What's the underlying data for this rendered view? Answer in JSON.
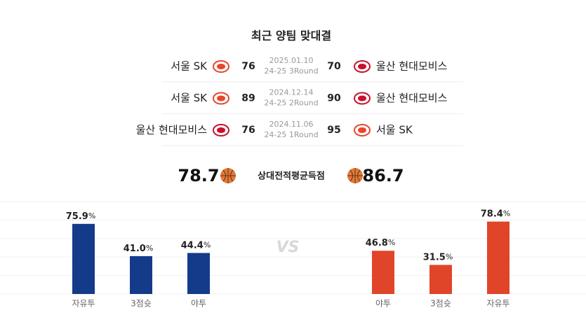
{
  "title": "최근 양팀 맞대결",
  "games": [
    {
      "date": "2025.01.10",
      "round": "24-25 3Round",
      "home": {
        "name": "서울 SK",
        "score": 76,
        "logo_color": "#e8452c"
      },
      "away": {
        "name": "울산 현대모비스",
        "score": 70,
        "logo_color": "#c8102e"
      }
    },
    {
      "date": "2024.12.14",
      "round": "24-25 2Round",
      "home": {
        "name": "서울 SK",
        "score": 89,
        "logo_color": "#e8452c"
      },
      "away": {
        "name": "울산 현대모비스",
        "score": 90,
        "logo_color": "#c8102e"
      }
    },
    {
      "date": "2024.11.06",
      "round": "24-25 1Round",
      "home": {
        "name": "울산 현대모비스",
        "score": 76,
        "logo_color": "#c8102e"
      },
      "away": {
        "name": "서울 SK",
        "score": 95,
        "logo_color": "#e8452c"
      }
    }
  ],
  "averages": {
    "label": "상대전적평균득점",
    "left": "78.7",
    "right": "86.7"
  },
  "vs": "VS",
  "chart_data": [
    {
      "type": "bar",
      "categories": [
        "자유투",
        "3점슛",
        "야투"
      ],
      "values": [
        75.9,
        41.0,
        44.4
      ],
      "value_labels": [
        "75.9",
        "41.0",
        "44.4"
      ],
      "unit": "%",
      "color": "#143a8a",
      "ylim": [
        0,
        100
      ],
      "yticks": [
        0,
        20,
        40,
        60,
        80,
        100
      ],
      "grid": true
    },
    {
      "type": "bar",
      "categories": [
        "야투",
        "3점슛",
        "자유투"
      ],
      "values": [
        46.8,
        31.5,
        78.4
      ],
      "value_labels": [
        "46.8",
        "31.5",
        "78.4"
      ],
      "unit": "%",
      "color": "#e0452a",
      "ylim": [
        0,
        100
      ],
      "yticks": [
        0,
        20,
        40,
        60,
        80,
        100
      ],
      "grid": true
    }
  ]
}
